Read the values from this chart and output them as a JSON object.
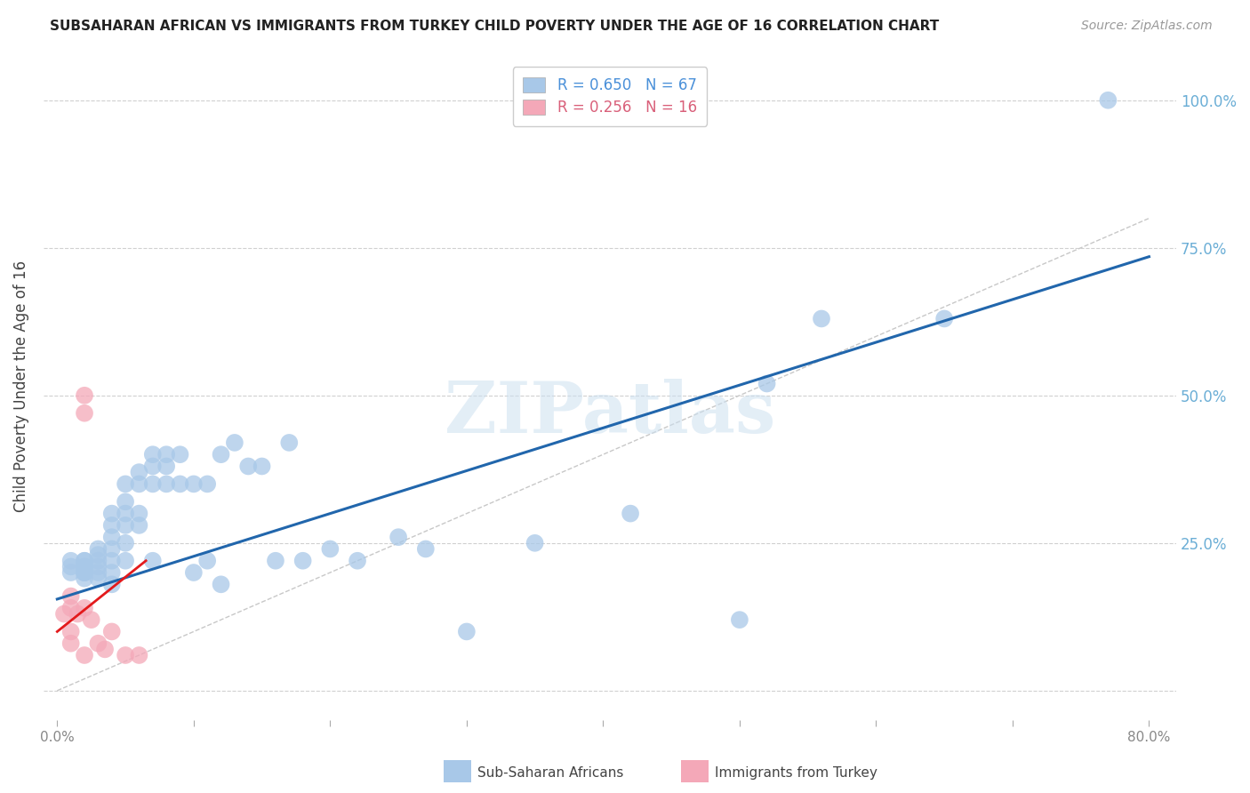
{
  "title": "SUBSAHARAN AFRICAN VS IMMIGRANTS FROM TURKEY CHILD POVERTY UNDER THE AGE OF 16 CORRELATION CHART",
  "source": "Source: ZipAtlas.com",
  "ylabel": "Child Poverty Under the Age of 16",
  "y_ticks": [
    0.0,
    0.25,
    0.5,
    0.75,
    1.0
  ],
  "y_tick_labels_right": [
    "",
    "25.0%",
    "50.0%",
    "75.0%",
    "100.0%"
  ],
  "x_tick_positions": [
    0.0,
    0.1,
    0.2,
    0.3,
    0.4,
    0.5,
    0.6,
    0.7,
    0.8
  ],
  "x_tick_labels": [
    "0.0%",
    "",
    "",
    "",
    "",
    "",
    "",
    "",
    "80.0%"
  ],
  "xlim": [
    -0.01,
    0.82
  ],
  "ylim": [
    -0.05,
    1.08
  ],
  "legend1_label": "R = 0.650   N = 67",
  "legend2_label": "R = 0.256   N = 16",
  "watermark": "ZIPatlas",
  "background_color": "#ffffff",
  "grid_color": "#d0d0d0",
  "blue_scatter_color": "#a8c8e8",
  "pink_scatter_color": "#f4a8b8",
  "blue_line_color": "#2166ac",
  "pink_line_color": "#e31a1c",
  "diag_line_color": "#c8c8c8",
  "blue_text_color": "#4a90d9",
  "pink_text_color": "#d9607a",
  "right_axis_color": "#6baed6",
  "blue_points_x": [
    0.01,
    0.01,
    0.01,
    0.02,
    0.02,
    0.02,
    0.02,
    0.02,
    0.02,
    0.02,
    0.02,
    0.03,
    0.03,
    0.03,
    0.03,
    0.03,
    0.03,
    0.04,
    0.04,
    0.04,
    0.04,
    0.04,
    0.04,
    0.04,
    0.05,
    0.05,
    0.05,
    0.05,
    0.05,
    0.05,
    0.06,
    0.06,
    0.06,
    0.06,
    0.07,
    0.07,
    0.07,
    0.07,
    0.08,
    0.08,
    0.08,
    0.09,
    0.09,
    0.1,
    0.1,
    0.11,
    0.11,
    0.12,
    0.12,
    0.13,
    0.14,
    0.15,
    0.16,
    0.17,
    0.18,
    0.2,
    0.22,
    0.25,
    0.27,
    0.3,
    0.35,
    0.42,
    0.5,
    0.52,
    0.56,
    0.65,
    0.77
  ],
  "blue_points_y": [
    0.21,
    0.22,
    0.2,
    0.22,
    0.21,
    0.22,
    0.2,
    0.19,
    0.2,
    0.21,
    0.2,
    0.24,
    0.23,
    0.21,
    0.22,
    0.2,
    0.19,
    0.3,
    0.28,
    0.26,
    0.24,
    0.22,
    0.2,
    0.18,
    0.35,
    0.32,
    0.3,
    0.28,
    0.25,
    0.22,
    0.37,
    0.35,
    0.3,
    0.28,
    0.4,
    0.38,
    0.35,
    0.22,
    0.4,
    0.38,
    0.35,
    0.4,
    0.35,
    0.35,
    0.2,
    0.35,
    0.22,
    0.4,
    0.18,
    0.42,
    0.38,
    0.38,
    0.22,
    0.42,
    0.22,
    0.24,
    0.22,
    0.26,
    0.24,
    0.1,
    0.25,
    0.3,
    0.12,
    0.52,
    0.63,
    0.63,
    1.0
  ],
  "pink_points_x": [
    0.005,
    0.01,
    0.01,
    0.01,
    0.01,
    0.015,
    0.02,
    0.02,
    0.02,
    0.02,
    0.025,
    0.03,
    0.035,
    0.04,
    0.05,
    0.06
  ],
  "pink_points_y": [
    0.13,
    0.1,
    0.08,
    0.16,
    0.14,
    0.13,
    0.47,
    0.5,
    0.14,
    0.06,
    0.12,
    0.08,
    0.07,
    0.1,
    0.06,
    0.06
  ],
  "blue_line_x": [
    0.0,
    0.8
  ],
  "blue_line_y": [
    0.155,
    0.735
  ],
  "pink_line_x": [
    0.0,
    0.065
  ],
  "pink_line_y": [
    0.1,
    0.22
  ],
  "diag_line_x": [
    0.0,
    0.8
  ],
  "diag_line_y": [
    0.0,
    0.8
  ]
}
